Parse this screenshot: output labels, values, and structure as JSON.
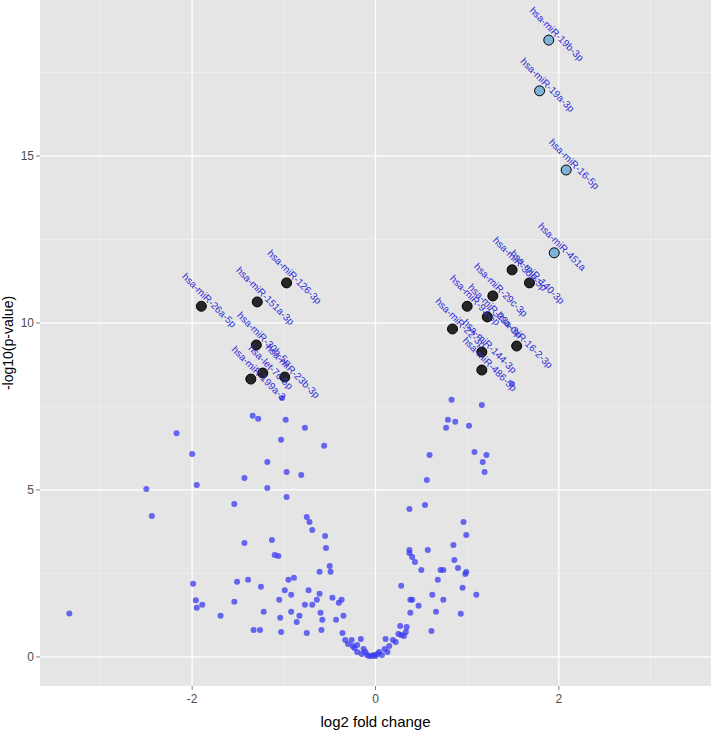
{
  "chart_data": {
    "type": "scatter",
    "x_label": "log2 fold change",
    "y_label": "-log10(p-value)",
    "xlim": [
      -3.66,
      3.66
    ],
    "ylim": [
      -0.87,
      19.67
    ],
    "xticks": [
      -2,
      0,
      2
    ],
    "yticks": [
      0,
      5,
      10,
      15
    ],
    "grid": true,
    "series": [
      {
        "color": "#3a3af0",
        "marker": "circle",
        "x": [
          -3.34,
          -2.5,
          -2.44,
          -2.17,
          -2.0,
          -1.95,
          -1.99,
          -1.96,
          -1.95,
          -1.89,
          -1.69,
          -1.54,
          -1.51,
          -1.54,
          -1.43,
          -1.43,
          -1.34,
          -1.28,
          -1.39,
          -1.33,
          -1.26,
          -1.22,
          -1.25,
          -1.18,
          -1.18,
          -1.13,
          -1.1,
          -1.06,
          -1.05,
          -1.04,
          -1.03,
          -1.03,
          -1.02,
          -0.98,
          -0.97,
          -0.97,
          -0.95,
          -0.99,
          -0.92,
          -0.92,
          -0.89,
          -0.86,
          -0.83,
          -0.81,
          -0.77,
          -0.75,
          -0.72,
          -0.69,
          -0.73,
          -0.77,
          -0.75,
          -0.69,
          -0.64,
          -0.61,
          -0.61,
          -0.6,
          -0.58,
          -0.59,
          -0.56,
          -0.55,
          -0.54,
          -0.5,
          -0.49,
          -0.47,
          -0.43,
          -0.4,
          -0.37,
          -0.35,
          -0.36,
          -0.33,
          -0.3,
          -0.26,
          -0.25,
          -0.23,
          -0.2,
          -0.2,
          -0.16,
          -0.15,
          -0.13,
          -0.11,
          -0.09,
          -0.07,
          -0.04,
          -0.02,
          0.0,
          0.02,
          0.04,
          0.07,
          0.1,
          0.11,
          0.13,
          0.15,
          0.19,
          0.22,
          0.25,
          0.27,
          0.28,
          0.31,
          0.33,
          0.38,
          0.34,
          0.38,
          0.28,
          0.37,
          0.37,
          0.37,
          0.4,
          0.43,
          0.4,
          0.47,
          0.5,
          0.57,
          0.56,
          0.54,
          0.59,
          0.61,
          0.62,
          0.66,
          0.68,
          0.71,
          0.74,
          0.74,
          0.77,
          0.79,
          0.83,
          0.85,
          0.86,
          0.87,
          0.9,
          0.93,
          0.95,
          0.96,
          0.98,
          0.99,
          0.99,
          1.02,
          1.1,
          1.08,
          1.16,
          1.17,
          1.19,
          1.21,
          1.49
        ],
        "values": [
          1.3,
          5.03,
          4.22,
          6.7,
          6.08,
          5.15,
          2.19,
          1.7,
          1.47,
          1.56,
          1.23,
          1.65,
          2.25,
          4.58,
          5.36,
          3.41,
          7.22,
          7.13,
          2.31,
          0.81,
          0.81,
          1.35,
          2.1,
          5.84,
          5.06,
          3.5,
          3.05,
          3.02,
          1.71,
          1.17,
          0.75,
          6.5,
          7.75,
          7.1,
          5.54,
          4.79,
          2.31,
          2.0,
          1.86,
          1.35,
          2.37,
          1.05,
          1.23,
          5.45,
          6.86,
          4.19,
          4.04,
          3.8,
          2.0,
          1.56,
          0.72,
          1.56,
          1.71,
          2.55,
          1.89,
          1.32,
          1.11,
          0.81,
          6.32,
          3.62,
          3.26,
          2.72,
          2.55,
          1.77,
          1.11,
          1.62,
          1.71,
          1.23,
          0.72,
          0.51,
          0.39,
          0.51,
          0.33,
          0.27,
          0.36,
          0.15,
          0.54,
          0.09,
          0.24,
          0.15,
          0.06,
          0.03,
          0.03,
          0.06,
          0.03,
          0.09,
          0.15,
          0.06,
          0.24,
          0.54,
          0.15,
          0.33,
          0.51,
          0.45,
          0.69,
          0.93,
          0.66,
          0.63,
          0.75,
          1.32,
          0.9,
          1.71,
          2.13,
          3.2,
          4.43,
          3.11,
          2.99,
          2.84,
          1.71,
          1.53,
          2.6,
          3.2,
          5.3,
          4.55,
          6.05,
          0.78,
          1.86,
          1.35,
          2.31,
          2.6,
          2.6,
          1.71,
          6.86,
          7.1,
          7.7,
          3.35,
          2.9,
          7.04,
          2.66,
          1.29,
          2.07,
          4.04,
          2.48,
          3.65,
          2.54,
          6.92,
          1.86,
          6.14,
          7.54,
          5.84,
          5.54,
          6.05,
          8.17
        ]
      },
      {
        "color": "#262626",
        "marker": "circle",
        "x": [
          -0.97,
          -1.9,
          -1.29,
          -1.3,
          -1.36,
          -1.23,
          -0.99,
          1.49,
          1.68,
          1.28,
          1.0,
          1.22,
          0.84,
          1.54,
          1.16,
          1.16
        ],
        "values": [
          11.2,
          10.5,
          10.63,
          9.34,
          8.32,
          8.5,
          8.38,
          11.59,
          11.2,
          10.81,
          10.5,
          10.18,
          9.82,
          9.31,
          9.13,
          8.59
        ],
        "labels": [
          "hsa-miR-126-3p",
          "hsa-miR-26a-5p",
          "hsa-miR-151a-3p",
          "hsa-miR-30b-5p",
          "hsa-miR-199a-3",
          "hsa-let-7c-5p",
          "hsa-miR-23b-3p",
          "hsa-miR-30e-5p",
          "hsa-miR-140-3p",
          "hsa-miR-29c-3p",
          "hsa-miR-93-5p",
          "hsa-miR-23a-3p",
          "hsa-miR-22-3p",
          "hsa-miR-16-2-3p",
          "hsa-miR-144-3p",
          "hsa-miR-486-5p"
        ]
      },
      {
        "color": "#7fb2d9",
        "marker": "circle",
        "x": [
          1.89,
          1.79,
          2.08,
          1.95
        ],
        "values": [
          18.47,
          16.95,
          14.58,
          12.1
        ],
        "labels": [
          "hsa-miR-19b-3p",
          "hsa-miR-19a-3p",
          "hsa-miR-16-5p",
          "hsa-miR-451a"
        ]
      }
    ]
  }
}
